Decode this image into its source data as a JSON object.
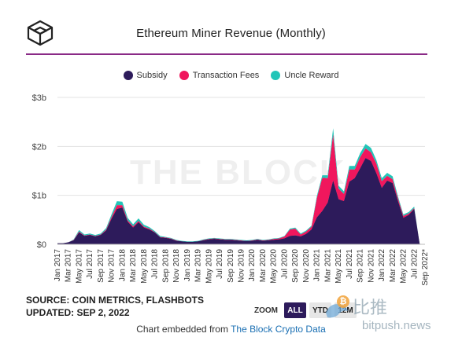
{
  "header": {
    "title": "Ethereum Miner Revenue (Monthly)",
    "logo_icon": "cube-icon"
  },
  "legend": [
    {
      "label": "Subsidy",
      "color": "#2d1b5b"
    },
    {
      "label": "Transaction Fees",
      "color": "#f0175d"
    },
    {
      "label": "Uncle Reward",
      "color": "#22c5b8"
    }
  ],
  "watermark": "THE BLOCK",
  "chart_data": {
    "type": "area",
    "stacked": true,
    "title": "Ethereum Miner Revenue (Monthly)",
    "x": [
      "Jan 2017",
      "Feb 2017",
      "Mar 2017",
      "Apr 2017",
      "May 2017",
      "Jun 2017",
      "Jul 2017",
      "Aug 2017",
      "Sep 2017",
      "Oct 2017",
      "Nov 2017",
      "Dec 2017",
      "Jan 2018",
      "Feb 2018",
      "Mar 2018",
      "Apr 2018",
      "May 2018",
      "Jun 2018",
      "Jul 2018",
      "Aug 2018",
      "Sep 2018",
      "Oct 2018",
      "Nov 2018",
      "Dec 2018",
      "Jan 2019",
      "Feb 2019",
      "Mar 2019",
      "Apr 2019",
      "May 2019",
      "Jun 2019",
      "Jul 2019",
      "Aug 2019",
      "Sep 2019",
      "Oct 2019",
      "Nov 2019",
      "Dec 2019",
      "Jan 2020",
      "Feb 2020",
      "Mar 2020",
      "Apr 2020",
      "May 2020",
      "Jun 2020",
      "Jul 2020",
      "Aug 2020",
      "Sep 2020",
      "Oct 2020",
      "Nov 2020",
      "Dec 2020",
      "Jan 2021",
      "Feb 2021",
      "Mar 2021",
      "Apr 2021",
      "May 2021",
      "Jun 2021",
      "Jul 2021",
      "Aug 2021",
      "Sep 2021",
      "Oct 2021",
      "Nov 2021",
      "Dec 2021",
      "Jan 2022",
      "Feb 2022",
      "Mar 2022",
      "Apr 2022",
      "May 2022",
      "Jun 2022",
      "Jul 2022",
      "Aug 2022",
      "Sep 2022*"
    ],
    "x_tick_labels": [
      "Jan 2017",
      "Mar 2017",
      "May 2017",
      "Jul 2017",
      "Sep 2017",
      "Nov 2017",
      "Jan 2018",
      "Mar 2018",
      "May 2018",
      "Jul 2018",
      "Sep 2018",
      "Nov 2018",
      "Jan 2019",
      "Mar 2019",
      "May 2019",
      "Jul 2019",
      "Sep 2019",
      "Nov 2019",
      "Jan 2020",
      "Mar 2020",
      "May 2020",
      "Jul 2020",
      "Sep 2020",
      "Nov 2020",
      "Jan 2021",
      "Mar 2021",
      "May 2021",
      "Jul 2021",
      "Sep 2021",
      "Nov 2021",
      "Jan 2022",
      "Mar 2022",
      "May 2022",
      "Jul 2022",
      "Sep 2022*"
    ],
    "y_tick_labels": [
      "$0",
      "$1b",
      "$2b",
      "$3b"
    ],
    "y_ticks": [
      0,
      1,
      2,
      3
    ],
    "ylim": [
      0,
      3
    ],
    "yunit": "billions USD",
    "grid": true,
    "legend_position": "top",
    "series": [
      {
        "name": "Subsidy",
        "color": "#2d1b5b",
        "values": [
          0.02,
          0.02,
          0.04,
          0.08,
          0.24,
          0.17,
          0.19,
          0.16,
          0.19,
          0.28,
          0.52,
          0.72,
          0.75,
          0.46,
          0.34,
          0.45,
          0.34,
          0.3,
          0.24,
          0.14,
          0.13,
          0.11,
          0.07,
          0.06,
          0.05,
          0.05,
          0.06,
          0.08,
          0.1,
          0.11,
          0.1,
          0.09,
          0.09,
          0.08,
          0.07,
          0.07,
          0.07,
          0.09,
          0.07,
          0.08,
          0.09,
          0.1,
          0.12,
          0.17,
          0.18,
          0.16,
          0.21,
          0.3,
          0.55,
          0.68,
          0.85,
          1.3,
          0.92,
          0.88,
          1.28,
          1.35,
          1.55,
          1.76,
          1.7,
          1.45,
          1.15,
          1.3,
          1.25,
          0.88,
          0.54,
          0.6,
          0.72,
          0.01,
          0.0
        ]
      },
      {
        "name": "Transaction Fees",
        "color": "#f0175d",
        "values": [
          0.0,
          0.0,
          0.0,
          0.01,
          0.02,
          0.01,
          0.01,
          0.01,
          0.01,
          0.02,
          0.04,
          0.08,
          0.05,
          0.03,
          0.03,
          0.03,
          0.02,
          0.02,
          0.01,
          0.01,
          0.01,
          0.01,
          0.01,
          0.0,
          0.0,
          0.0,
          0.0,
          0.01,
          0.01,
          0.01,
          0.01,
          0.01,
          0.01,
          0.01,
          0.01,
          0.0,
          0.01,
          0.01,
          0.01,
          0.01,
          0.02,
          0.02,
          0.04,
          0.13,
          0.14,
          0.04,
          0.05,
          0.06,
          0.4,
          0.68,
          0.5,
          0.95,
          0.22,
          0.15,
          0.25,
          0.18,
          0.23,
          0.2,
          0.18,
          0.2,
          0.14,
          0.1,
          0.08,
          0.06,
          0.04,
          0.03,
          0.02,
          0.0,
          0.0
        ]
      },
      {
        "name": "Uncle Reward",
        "color": "#22c5b8",
        "values": [
          0.0,
          0.0,
          0.0,
          0.01,
          0.03,
          0.02,
          0.02,
          0.02,
          0.02,
          0.03,
          0.05,
          0.08,
          0.07,
          0.05,
          0.04,
          0.05,
          0.04,
          0.03,
          0.02,
          0.02,
          0.01,
          0.01,
          0.01,
          0.01,
          0.01,
          0.01,
          0.01,
          0.01,
          0.01,
          0.01,
          0.01,
          0.01,
          0.01,
          0.01,
          0.01,
          0.01,
          0.01,
          0.01,
          0.01,
          0.01,
          0.01,
          0.01,
          0.01,
          0.02,
          0.02,
          0.02,
          0.02,
          0.02,
          0.04,
          0.05,
          0.06,
          0.12,
          0.06,
          0.05,
          0.07,
          0.07,
          0.08,
          0.09,
          0.09,
          0.07,
          0.06,
          0.06,
          0.06,
          0.04,
          0.03,
          0.03,
          0.03,
          0.0,
          0.0
        ]
      }
    ]
  },
  "footer": {
    "source_line": "SOURCE: COIN METRICS, FLASHBOTS",
    "updated_line": "UPDATED: SEP 2, 2022",
    "embed_text": "Chart embedded from ",
    "embed_link": "The Block Crypto Data"
  },
  "zoom": {
    "label": "ZOOM",
    "options": [
      {
        "label": "ALL",
        "active": true
      },
      {
        "label": "YTD",
        "active": false
      },
      {
        "label": "12M",
        "active": false
      }
    ]
  },
  "overlay": {
    "cn_text": "比推",
    "url_text": "bitpush.news",
    "coin_glyph": "₿"
  }
}
